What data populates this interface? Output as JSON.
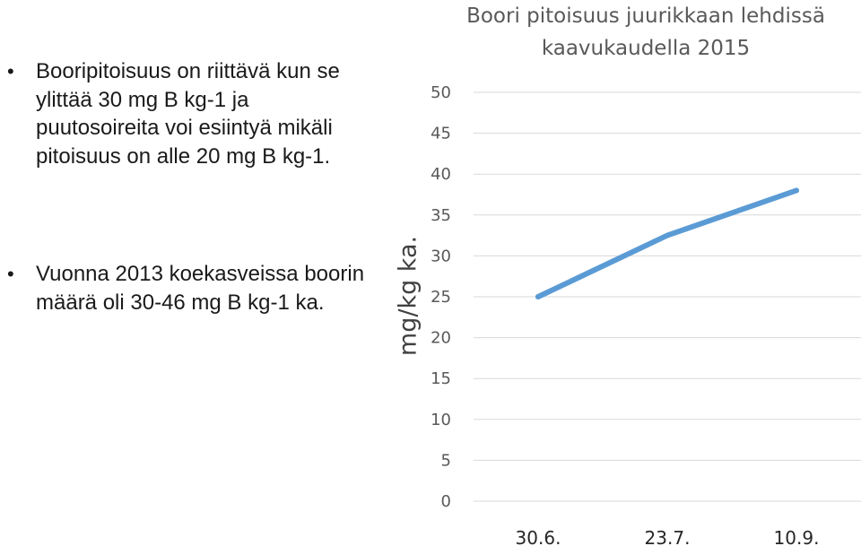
{
  "bullets": [
    {
      "icon": "bullet-dot-icon",
      "text": "Booripitoisuus on riittävä kun se ylittää 30 mg B kg-1 ja puutosoireita voi esiintyä mikäli pitoisuus on alle 20 mg B kg-1."
    },
    {
      "icon": "bullet-dot-icon",
      "text": "Vuonna 2013 koekasveissa boorin määrä oli 30-46 mg B kg-1 ka."
    }
  ],
  "chart_data": {
    "type": "line",
    "title": "Boori pitoisuus juurikkaan lehdissä kaavukaudella 2015",
    "ylabel": "mg/kg ka.",
    "xlabel": "",
    "categories": [
      "30.6.",
      "23.7.",
      "10.9."
    ],
    "series": [
      {
        "values": [
          25,
          32.5,
          38
        ],
        "color": "#5b9bd5"
      }
    ],
    "ylim": [
      0,
      50
    ],
    "yticks": [
      0,
      5,
      10,
      15,
      20,
      25,
      30,
      35,
      40,
      45,
      50
    ],
    "grid": true,
    "gridColor": "#d9d9d9",
    "legend": "none"
  }
}
